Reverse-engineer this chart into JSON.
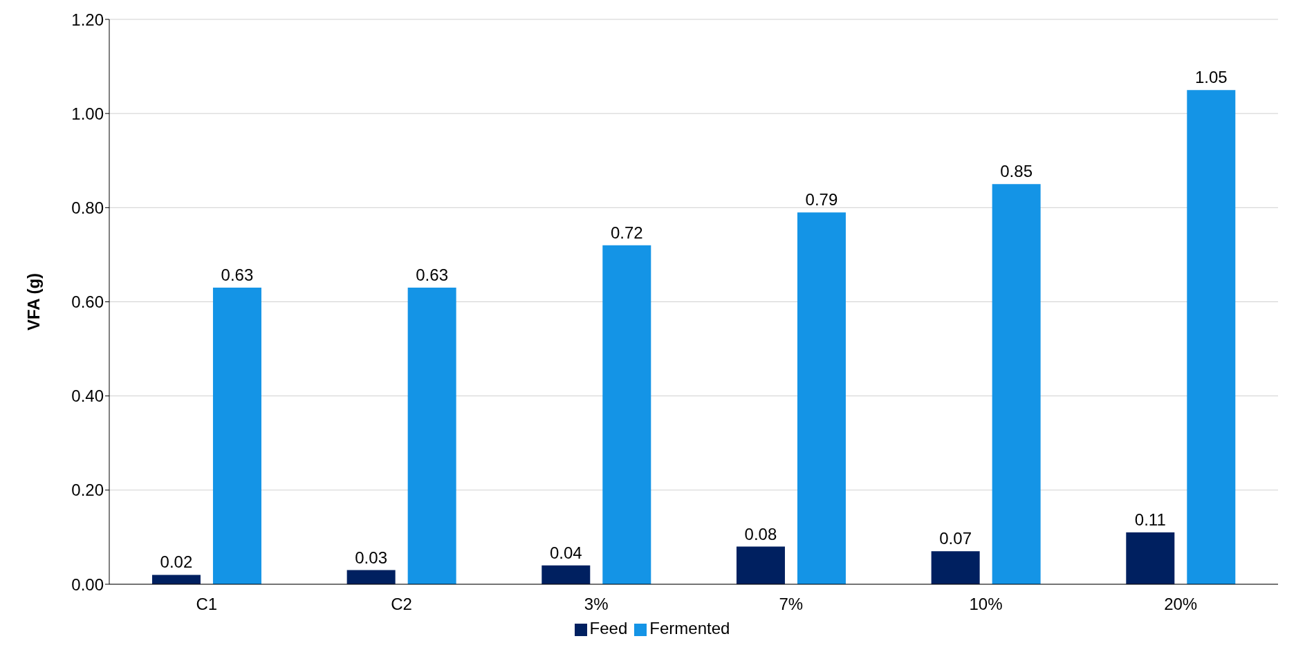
{
  "chart_data": {
    "type": "bar",
    "ylabel": "VFA (g)",
    "categories": [
      "C1",
      "C2",
      "3%",
      "7%",
      "10%",
      "20%"
    ],
    "series": [
      {
        "name": "Feed",
        "color": "#002060",
        "values": [
          0.02,
          0.03,
          0.04,
          0.08,
          0.07,
          0.11
        ]
      },
      {
        "name": "Fermented",
        "color": "#1494e6",
        "values": [
          0.63,
          0.63,
          0.72,
          0.79,
          0.85,
          1.05
        ]
      }
    ],
    "ylim": [
      0,
      1.2
    ],
    "yticks": [
      {
        "value": 0,
        "label": "0.00"
      },
      {
        "value": 0.2,
        "label": "0.20"
      },
      {
        "value": 0.4,
        "label": "0.40"
      },
      {
        "value": 0.6,
        "label": "0.60"
      },
      {
        "value": 0.8,
        "label": "0.80"
      },
      {
        "value": 1,
        "label": "1.00"
      },
      {
        "value": 1.2,
        "label": "1.20"
      }
    ],
    "grid": "y",
    "legend": "bottom",
    "data_labels": true
  }
}
